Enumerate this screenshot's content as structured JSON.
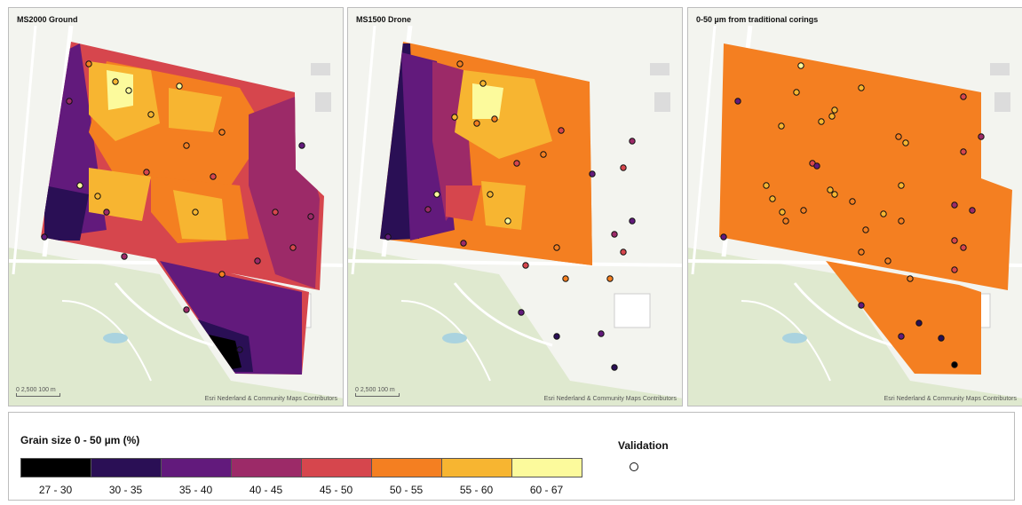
{
  "panels": [
    {
      "title": "MS2000 Ground",
      "mode": "ground",
      "attribution": "Esri Nederland & Community Maps Contributors",
      "scale": "0  2,500     100 m",
      "scale_color": "#0c0a1c"
    },
    {
      "title": "MS1500 Drone",
      "mode": "drone",
      "attribution": "Esri Nederland & Community Maps Contributors",
      "scale": "0  2,500     100 m"
    },
    {
      "title": "0-50 µm from traditional corings",
      "mode": "uniform",
      "attribution": "Esri Nederland & Community Maps Contributors",
      "scale": "",
      "uniform_color": "#f47f21"
    }
  ],
  "legend": {
    "title": "Grain size 0 - 50 µm (%)",
    "classes": [
      {
        "label": "27 - 30",
        "color": "#000000"
      },
      {
        "label": "30 - 35",
        "color": "#2a0f55"
      },
      {
        "label": "35 - 40",
        "color": "#621a7c"
      },
      {
        "label": "40 - 45",
        "color": "#9c2a68"
      },
      {
        "label": "45 - 50",
        "color": "#d6464d"
      },
      {
        "label": "50 - 55",
        "color": "#f47f21"
      },
      {
        "label": "55 - 60",
        "color": "#f7b531"
      },
      {
        "label": "60 - 67",
        "color": "#fcfa9c"
      }
    ],
    "validation_label": "Validation"
  },
  "map_colors": {
    "land": "#f3f4ef",
    "park": "#dfe9cf",
    "road": "#ffffff",
    "water": "#aad3df",
    "building": "#dcdcdc"
  }
}
